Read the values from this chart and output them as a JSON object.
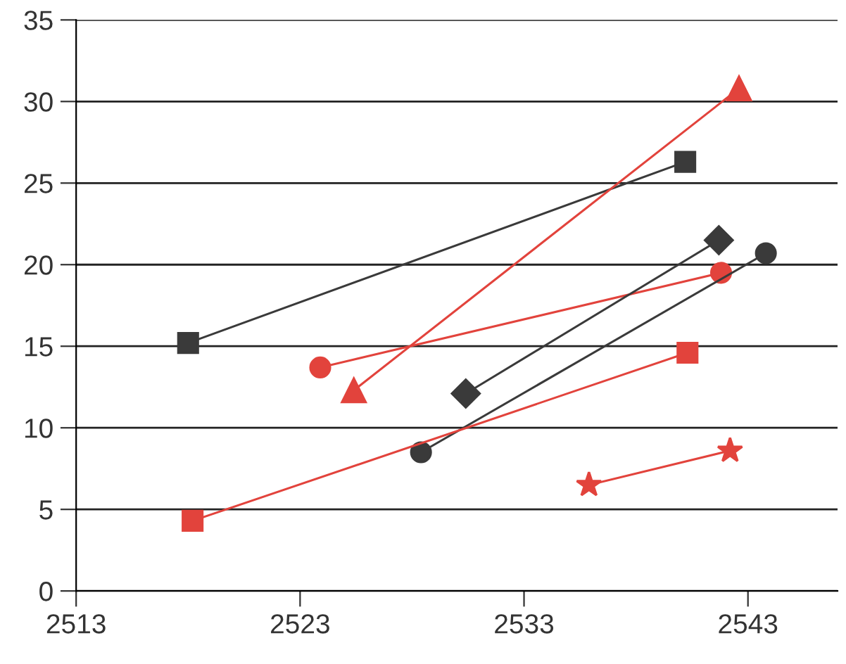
{
  "chart_data": {
    "type": "line",
    "xlim": [
      2513,
      2547
    ],
    "ylim": [
      0,
      35
    ],
    "xticks": [
      2513,
      2523,
      2533,
      2543
    ],
    "yticks": [
      0,
      5,
      10,
      15,
      20,
      25,
      30,
      35
    ],
    "grid": "y",
    "line_style": "solid",
    "series": [
      {
        "color": "#3a3a3a",
        "marker": "square",
        "x": [
          2518,
          2540.2
        ],
        "values": [
          15.2,
          26.3
        ]
      },
      {
        "color": "#e2433c",
        "marker": "triangle",
        "x": [
          2525.4,
          2542.6
        ],
        "values": [
          12.3,
          30.8
        ]
      },
      {
        "color": "#e2433c",
        "marker": "circle",
        "x": [
          2523.9,
          2541.8
        ],
        "values": [
          13.7,
          19.5
        ]
      },
      {
        "color": "#3a3a3a",
        "marker": "diamond",
        "x": [
          2530.4,
          2541.7
        ],
        "values": [
          12.1,
          21.5
        ]
      },
      {
        "color": "#3a3a3a",
        "marker": "circle",
        "x": [
          2528.4,
          2543.8
        ],
        "values": [
          8.5,
          20.7
        ]
      },
      {
        "color": "#e2433c",
        "marker": "square",
        "x": [
          2518.2,
          2540.3
        ],
        "values": [
          4.3,
          14.6
        ]
      },
      {
        "color": "#e2433c",
        "marker": "star",
        "x": [
          2535.9,
          2542.2
        ],
        "values": [
          6.5,
          8.6
        ]
      }
    ]
  }
}
